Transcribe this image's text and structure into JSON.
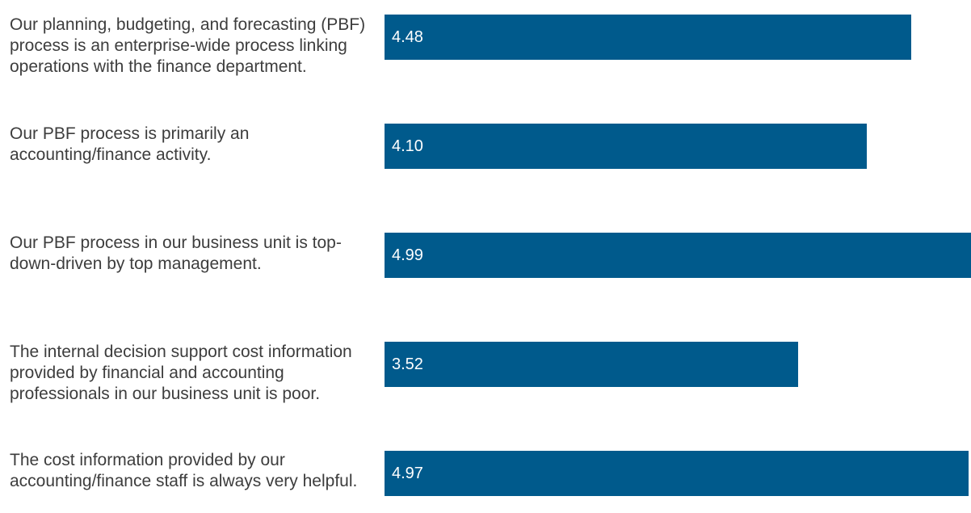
{
  "chart_data": {
    "type": "bar",
    "orientation": "horizontal",
    "title": "",
    "xlabel": "",
    "ylabel": "",
    "categories": [
      "Our planning, budgeting, and forecasting (PBF) process is an enterprise-wide process linking operations with the finance department.",
      "Our PBF process is primarily an accounting/finance activity.",
      "Our PBF process in our business unit is top-down-driven by top management.",
      "The internal decision support cost information provided by financial and accounting professionals in our business unit is poor.",
      "The cost information provided by our accounting/finance staff is always very helpful."
    ],
    "values": [
      4.48,
      4.1,
      4.99,
      3.52,
      4.97
    ],
    "value_labels": [
      "4.48",
      "4.10",
      "4.99",
      "3.52",
      "4.97"
    ],
    "xlim": [
      0,
      4.99
    ],
    "grid": false,
    "legend": "none",
    "bar_color": "#005a8c",
    "label_color": "#3d3d3d",
    "value_label_color": "#ffffff"
  }
}
